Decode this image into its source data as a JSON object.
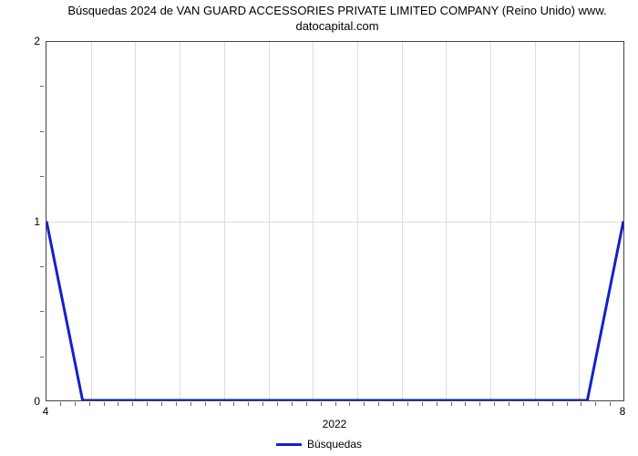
{
  "chart": {
    "type": "line",
    "title_line1": "Búsquedas 2024 de VAN GUARD ACCESSORIES PRIVATE LIMITED COMPANY (Reino Unido) www.",
    "title_line2": "datocapital.com",
    "title_fontsize": 13,
    "title_color": "#000000",
    "background_color": "#ffffff",
    "plot_border_color": "#444444",
    "grid_color": "#dddddd",
    "label_fontsize": 12,
    "label_color": "#000000",
    "y": {
      "ticks": [
        0,
        1,
        2
      ],
      "lim": [
        0,
        2
      ],
      "minor_tick_count_between": 3
    },
    "x": {
      "lim": [
        4,
        8
      ],
      "end_labels": [
        "4",
        "8"
      ],
      "center_label": "2022",
      "minor_tick_count": 40
    },
    "grid_vertical_count": 12,
    "series": {
      "name": "Búsquedas",
      "color": "#1320cc",
      "line_width": 3,
      "points": [
        {
          "x": 4.0,
          "y": 1.0
        },
        {
          "x": 4.25,
          "y": 0.0
        },
        {
          "x": 7.75,
          "y": 0.0
        },
        {
          "x": 8.0,
          "y": 1.0
        }
      ]
    },
    "legend": {
      "label": "Búsquedas",
      "swatch_color": "#1320cc"
    }
  }
}
